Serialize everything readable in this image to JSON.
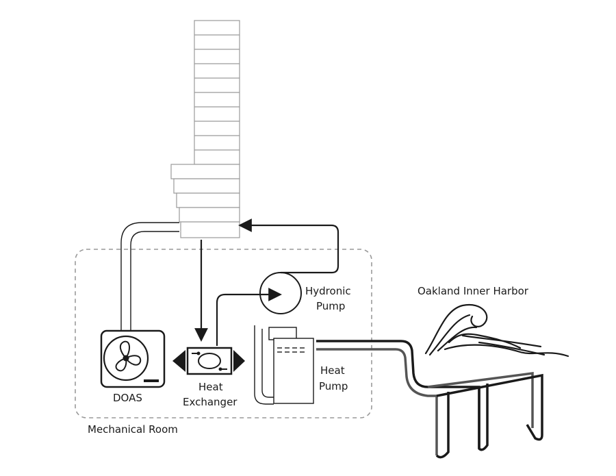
{
  "labels": {
    "hydronic_pump_line1": "Hydronic",
    "hydronic_pump_line2": "Pump",
    "oakland_harbor": "Oakland Inner Harbor",
    "heat_pump_line1": "Heat",
    "heat_pump_line2": "Pump",
    "doas": "DOAS",
    "heat_exchanger_line1": "Heat",
    "heat_exchanger_line2": "Exchanger",
    "mechanical_room": "Mechanical Room"
  },
  "colors": {
    "line": "#1a1a1a",
    "building": "#9a9a9a",
    "dashed": "#999999",
    "pipe_gray": "#555555"
  }
}
